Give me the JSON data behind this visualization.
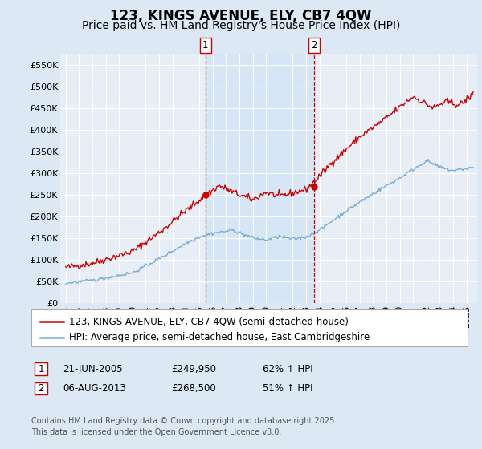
{
  "title": "123, KINGS AVENUE, ELY, CB7 4QW",
  "subtitle": "Price paid vs. HM Land Registry's House Price Index (HPI)",
  "ylim": [
    0,
    575000
  ],
  "yticks": [
    0,
    50000,
    100000,
    150000,
    200000,
    250000,
    300000,
    350000,
    400000,
    450000,
    500000,
    550000
  ],
  "ytick_labels": [
    "£0",
    "£50K",
    "£100K",
    "£150K",
    "£200K",
    "£250K",
    "£300K",
    "£350K",
    "£400K",
    "£450K",
    "£500K",
    "£550K"
  ],
  "xlim_left": 1994.6,
  "xlim_right": 2025.8,
  "background_color": "#dce9f5",
  "plot_bg_color": "#e8eef5",
  "grid_color": "#ffffff",
  "shade_color": "#d0e4f7",
  "red_color": "#cc0000",
  "blue_color": "#7aadd4",
  "marker1_x": 2005.47,
  "marker2_x": 2013.6,
  "marker1_price": 249950,
  "marker2_price": 268500,
  "legend_label_red": "123, KINGS AVENUE, ELY, CB7 4QW (semi-detached house)",
  "legend_label_blue": "HPI: Average price, semi-detached house, East Cambridgeshire",
  "footer": "Contains HM Land Registry data © Crown copyright and database right 2025.\nThis data is licensed under the Open Government Licence v3.0.",
  "title_fontsize": 12,
  "subtitle_fontsize": 10,
  "tick_fontsize": 8,
  "legend_fontsize": 8.5,
  "annotation_fontsize": 8.5,
  "footer_fontsize": 7
}
